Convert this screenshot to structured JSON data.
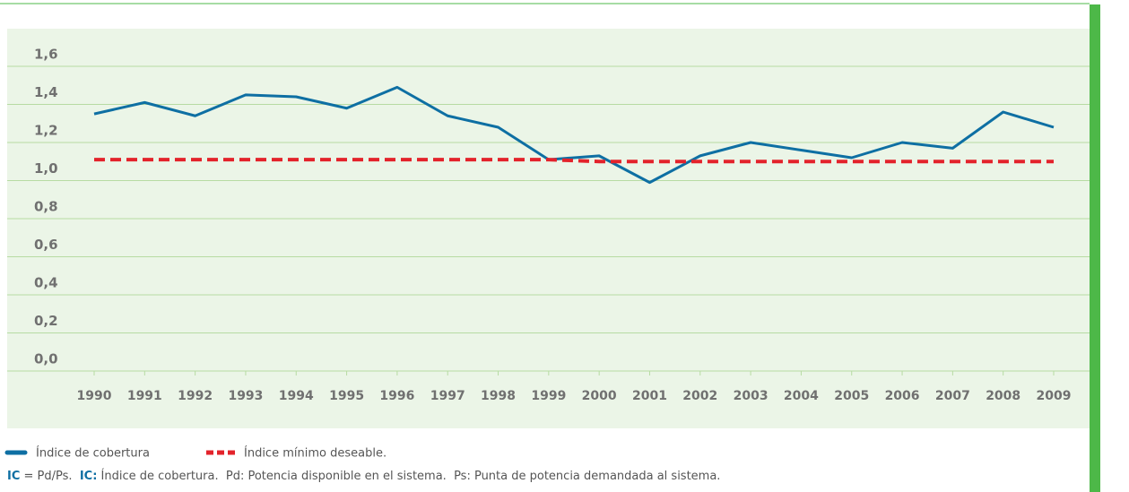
{
  "chart_data": {
    "type": "line",
    "categories": [
      "1990",
      "1991",
      "1992",
      "1993",
      "1994",
      "1995",
      "1996",
      "1997",
      "1998",
      "1999",
      "2000",
      "2001",
      "2002",
      "2003",
      "2004",
      "2005",
      "2006",
      "2007",
      "2008",
      "2009"
    ],
    "series": [
      {
        "name": "Índice de cobertura",
        "color": "#0e6fa3",
        "dash": false,
        "values": [
          1.35,
          1.41,
          1.34,
          1.45,
          1.44,
          1.38,
          1.49,
          1.34,
          1.28,
          1.11,
          1.13,
          0.99,
          1.13,
          1.2,
          1.16,
          1.12,
          1.2,
          1.17,
          1.36,
          1.28
        ]
      },
      {
        "name": "Índice mínimo deseable.",
        "color": "#e3232b",
        "dash": true,
        "values": [
          1.11,
          1.11,
          1.11,
          1.11,
          1.11,
          1.11,
          1.11,
          1.11,
          1.11,
          1.11,
          1.1,
          1.1,
          1.1,
          1.1,
          1.1,
          1.1,
          1.1,
          1.1,
          1.1,
          1.1
        ]
      }
    ],
    "ylim": [
      0,
      1.6
    ],
    "yticks": [
      {
        "value": 0,
        "label": "0,0"
      },
      {
        "value": 0.2,
        "label": "0,2"
      },
      {
        "value": 0.4,
        "label": "0,4"
      },
      {
        "value": 0.6,
        "label": "0,6"
      },
      {
        "value": 0.8,
        "label": "0,8"
      },
      {
        "value": 1.0,
        "label": "1,0"
      },
      {
        "value": 1.2,
        "label": "1,2"
      },
      {
        "value": 1.4,
        "label": "1,4"
      },
      {
        "value": 1.6,
        "label": "1,6"
      }
    ],
    "grid": true,
    "footnote": {
      "part1": "IC",
      "part2": " = Pd/Ps.  ",
      "part3": "IC:",
      "part4": " Índice de cobertura.  Pd: Potencia disponible en el sistema.  Ps: Punta de potencia demandada al sistema."
    }
  }
}
